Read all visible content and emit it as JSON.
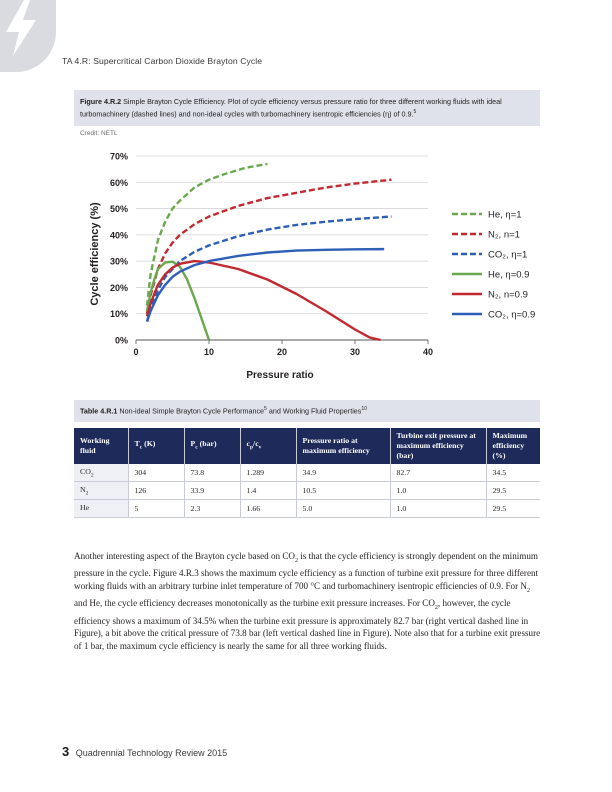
{
  "header": {
    "running_head": "TA 4.R: Supercritical Carbon Dioxide Brayton Cycle"
  },
  "figure": {
    "label": "Figure 4.R.2",
    "caption": "Simple Brayton Cycle Efficiency. Plot of cycle efficiency versus pressure ratio for three different working fluids with ideal turbomachinery (dashed lines) and non-ideal cycles with turbomachinery isentropic efficiencies (η) of 0.9.",
    "caption_ref": "5",
    "credit": "Credit: NETL"
  },
  "chart_data": {
    "type": "line",
    "xlabel": "Pressure ratio",
    "ylabel": "Cycle efficiency (%)",
    "xlim": [
      0,
      40
    ],
    "ylim": [
      0,
      70
    ],
    "x_ticks": [
      "0",
      "10",
      "20",
      "30",
      "40"
    ],
    "y_ticks": [
      "0%",
      "10%",
      "20%",
      "30%",
      "40%",
      "50%",
      "60%",
      "70%"
    ],
    "grid": "horizontal",
    "legend_placement": "right",
    "series": [
      {
        "name": "He, η=1",
        "color": "#6aa84f",
        "dash": true,
        "x": [
          1.5,
          2,
          3,
          4,
          5,
          6,
          8,
          10,
          12,
          15,
          18
        ],
        "y": [
          13,
          25,
          38,
          45,
          50,
          53,
          58,
          61,
          63,
          65.5,
          67
        ]
      },
      {
        "name": "N₂, n=1",
        "color": "#c0292f",
        "dash": true,
        "x": [
          1.5,
          2,
          3,
          4,
          5,
          6,
          8,
          10,
          14,
          18,
          22,
          26,
          30,
          35
        ],
        "y": [
          10,
          17,
          27,
          33,
          37,
          40,
          44,
          47,
          51,
          54,
          56,
          58,
          59.5,
          61
        ]
      },
      {
        "name": "CO₂, η=1",
        "color": "#2e5fb7",
        "dash": true,
        "x": [
          1.5,
          2,
          3,
          4,
          5,
          6,
          8,
          10,
          14,
          18,
          22,
          26,
          30,
          35
        ],
        "y": [
          7,
          12,
          19,
          24,
          27,
          30,
          33.5,
          36,
          39.5,
          42,
          43.8,
          45,
          46,
          47
        ]
      },
      {
        "name": "He, η=0.9",
        "color": "#6aa84f",
        "dash": false,
        "x": [
          1.5,
          2,
          2.5,
          3,
          4,
          5,
          6,
          7,
          8,
          9,
          9.5,
          10
        ],
        "y": [
          11,
          18,
          23,
          27,
          29.5,
          29.8,
          28,
          23,
          16,
          8,
          4,
          0
        ]
      },
      {
        "name": "N₂, n=0.9",
        "color": "#c0292f",
        "dash": false,
        "x": [
          1.5,
          2,
          3,
          4,
          5,
          6,
          8,
          10,
          14,
          18,
          22,
          26,
          30,
          32,
          33.5
        ],
        "y": [
          9,
          14,
          21,
          25,
          27.5,
          29,
          30,
          29.5,
          27,
          23,
          17.5,
          11,
          4,
          1,
          0
        ]
      },
      {
        "name": "CO₂, η=0.9",
        "color": "#2e5fb7",
        "dash": false,
        "x": [
          1.5,
          2,
          3,
          4,
          5,
          6,
          8,
          10,
          14,
          18,
          22,
          26,
          30,
          34
        ],
        "y": [
          7,
          11,
          17,
          21,
          24,
          26,
          28.5,
          30,
          32,
          33.3,
          34,
          34.3,
          34.5,
          34.6
        ]
      }
    ]
  },
  "table": {
    "label": "Table 4.R.1",
    "caption": "Non-ideal Simple Brayton Cycle Performance",
    "caption_ref_a": "5",
    "caption_mid": "and Working Fluid Properties",
    "caption_ref_b": "10",
    "headers": [
      {
        "main": "Working fluid",
        "sub": ""
      },
      {
        "main": "T",
        "sub": "c",
        "tail": " (K)"
      },
      {
        "main": "P",
        "sub": "c",
        "tail": " (bar)"
      },
      {
        "main": "c",
        "sub": "p",
        "tail": "/c",
        "sub2": "v"
      },
      {
        "main": "Pressure ratio at maximum efficiency",
        "sub": ""
      },
      {
        "main": "Turbine exit pressure at maximum efficiency (bar)",
        "sub": ""
      },
      {
        "main": "Maximum efficiency (%)",
        "sub": ""
      }
    ],
    "rows": [
      {
        "fluid": "CO",
        "fluid_sub": "2",
        "tc": "304",
        "pc": "73.8",
        "cpcv": "1.289",
        "pr": "34.9",
        "tep": "82.7",
        "eff": "34.5"
      },
      {
        "fluid": "N",
        "fluid_sub": "2",
        "tc": "126",
        "pc": "33.9",
        "cpcv": "1.4",
        "pr": "10.5",
        "tep": "1.0",
        "eff": "29.5"
      },
      {
        "fluid": "He",
        "fluid_sub": "",
        "tc": "5",
        "pc": "2.3",
        "cpcv": "1.66",
        "pr": "5.0",
        "tep": "1.0",
        "eff": "29.5"
      }
    ]
  },
  "body": {
    "p1": "Another interesting aspect of the Brayton cycle based on CO",
    "p1_sub": "2",
    "p2": " is that the cycle efficiency is strongly dependent on the minimum pressure in the cycle. Figure 4.R.3 shows the maximum cycle efficiency as a function of turbine exit pressure for three different working fluids with an arbitrary turbine inlet temperature of 700 °C and turbomachinery isentropic efficiencies of 0.9. For N",
    "p2_sub": "2",
    "p3": " and He, the cycle efficiency decreases monotonically as the turbine exit pressure increases. For CO",
    "p3_sub": "2",
    "p4": ", however, the cycle efficiency shows a maximum of 34.5% when the turbine exit pressure is approximately 82.7 bar (right vertical dashed line in Figure), a bit above the critical pressure of 73.8 bar (left vertical dashed line in Figure). Note also that for a turbine exit pressure of 1 bar, the maximum cycle efficiency is nearly the same for all three working fluids."
  },
  "footer": {
    "page_number": "3",
    "publication": "Quadrennial Technology Review 2015"
  },
  "colors": {
    "header_navy": "#1e2a5a",
    "caption_bg": "#dfe2ea",
    "corner_gray": "#d9dbe0"
  },
  "icons": {
    "corner": "lightning-bolt-icon"
  }
}
